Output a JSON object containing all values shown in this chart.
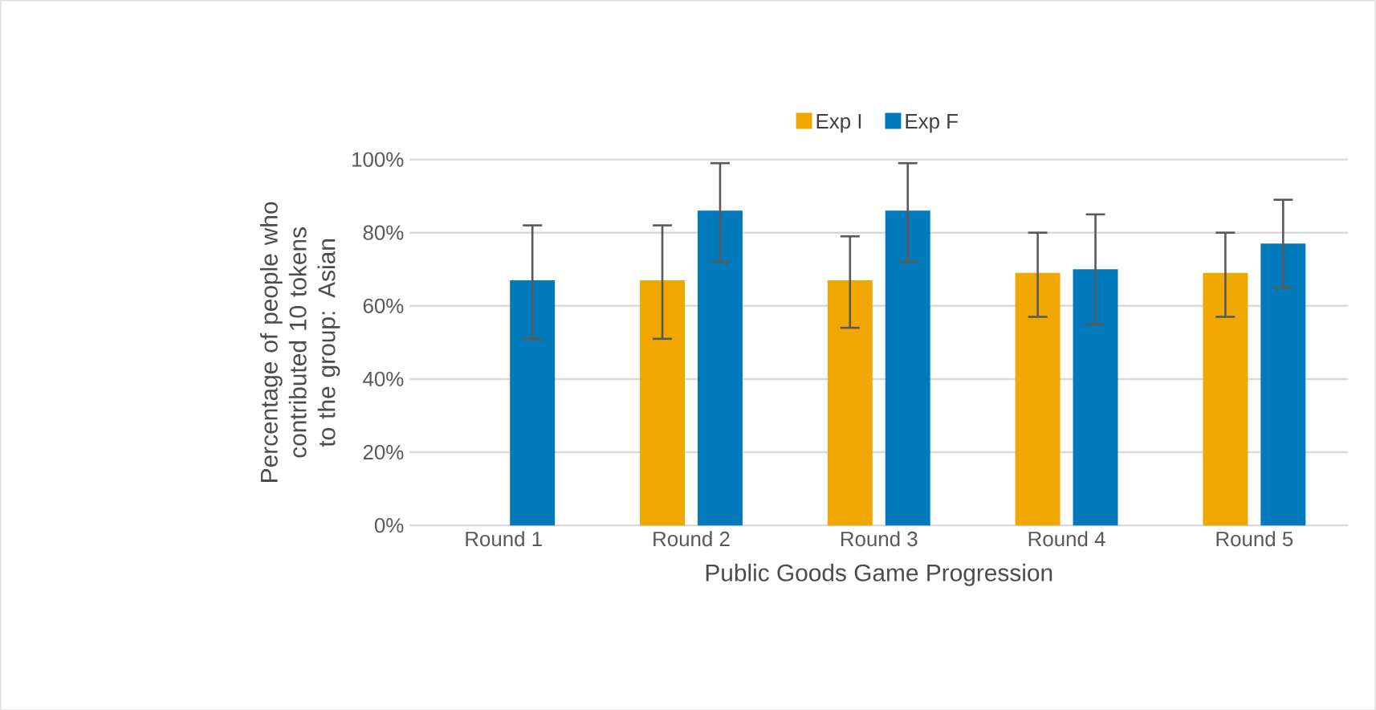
{
  "chart_data": {
    "type": "bar",
    "xlabel": "Public Goods Game Progression",
    "ylabel": "Percentage of people who contributed 10 tokens to the group: Asian",
    "categories": [
      "Round 1",
      "Round 2",
      "Round 3",
      "Round 4",
      "Round 5"
    ],
    "series": [
      {
        "name": "Exp I",
        "color": "#f0a800",
        "values": [
          0,
          67,
          67,
          69,
          69
        ],
        "errors": [
          null,
          [
            51,
            82
          ],
          [
            54,
            79
          ],
          [
            57,
            80
          ],
          [
            57,
            80
          ]
        ]
      },
      {
        "name": "Exp F",
        "color": "#007abb",
        "values": [
          67,
          86,
          86,
          70,
          77
        ],
        "errors": [
          [
            51,
            82
          ],
          [
            72,
            99
          ],
          [
            72,
            99
          ],
          [
            55,
            85
          ],
          [
            65,
            89
          ]
        ]
      }
    ],
    "ylim": [
      0,
      100
    ],
    "yticks": [
      {
        "value": 0,
        "label": "0%"
      },
      {
        "value": 20,
        "label": "20%"
      },
      {
        "value": 40,
        "label": "40%"
      },
      {
        "value": 60,
        "label": "60%"
      },
      {
        "value": 80,
        "label": "80%"
      },
      {
        "value": 100,
        "label": "100%"
      }
    ],
    "grid": "y",
    "legend": "top"
  }
}
